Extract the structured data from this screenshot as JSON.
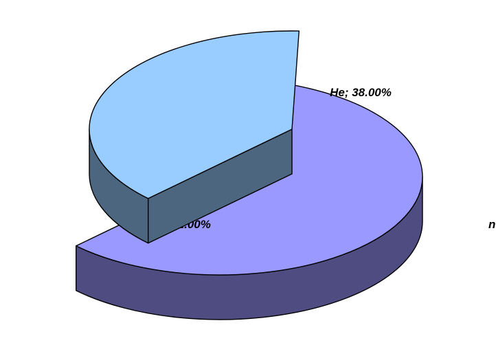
{
  "chart_data": {
    "type": "pie",
    "style": "3d-exploded",
    "slices": [
      {
        "category": "Да",
        "value": 62.0,
        "label": "Да; 62.00%",
        "top_color": "#9999ff",
        "side_color": "#4e4c80"
      },
      {
        "category": "Не",
        "value": 38.0,
        "label": "Не; 38.00%",
        "top_color": "#99ccff",
        "side_color": "#4c6680"
      }
    ],
    "outline_color": "#000000",
    "clipped_text": "n"
  }
}
